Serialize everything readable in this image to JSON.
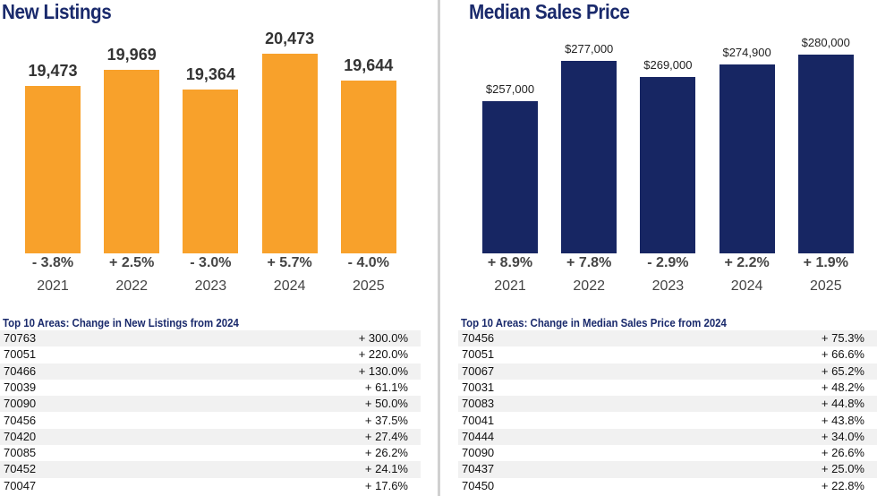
{
  "chart_data": [
    {
      "type": "bar",
      "title": "New Listings",
      "categories": [
        "2021",
        "2022",
        "2023",
        "2024",
        "2025"
      ],
      "values": [
        19473,
        19969,
        19364,
        20473,
        19644
      ],
      "value_labels": [
        "19,473",
        "19,969",
        "19,364",
        "20,473",
        "19,644"
      ],
      "change_labels": [
        "- 3.8%",
        "+ 2.5%",
        "- 3.0%",
        "+ 5.7%",
        "- 4.0%"
      ],
      "ylim": [
        14280,
        21030
      ],
      "color": "#f8a12b",
      "grid": false
    },
    {
      "type": "bar",
      "title": "Median Sales Price",
      "categories": [
        "2021",
        "2022",
        "2023",
        "2024",
        "2025"
      ],
      "values": [
        257000,
        277000,
        269000,
        274900,
        280000
      ],
      "value_labels": [
        "$257,000",
        "$277,000",
        "$269,000",
        "$274,900",
        "$280,000"
      ],
      "change_labels": [
        "+ 8.9%",
        "+ 7.8%",
        "- 2.9%",
        "+ 2.2%",
        "+ 1.9%"
      ],
      "ylim": [
        181800,
        289200
      ],
      "color": "#172663",
      "grid": false
    }
  ],
  "tables": [
    {
      "title": "Top 10 Areas: Change in New Listings from 2024",
      "rows": [
        [
          "70763",
          "+ 300.0%"
        ],
        [
          "70051",
          "+ 220.0%"
        ],
        [
          "70466",
          "+ 130.0%"
        ],
        [
          "70039",
          "+ 61.1%"
        ],
        [
          "70090",
          "+ 50.0%"
        ],
        [
          "70456",
          "+ 37.5%"
        ],
        [
          "70420",
          "+ 27.4%"
        ],
        [
          "70085",
          "+ 26.2%"
        ],
        [
          "70452",
          "+ 24.1%"
        ],
        [
          "70047",
          "+ 17.6%"
        ]
      ]
    },
    {
      "title": "Top 10 Areas: Change in Median Sales Price from 2024",
      "rows": [
        [
          "70456",
          "+ 75.3%"
        ],
        [
          "70051",
          "+ 66.6%"
        ],
        [
          "70067",
          "+ 65.2%"
        ],
        [
          "70031",
          "+ 48.2%"
        ],
        [
          "70083",
          "+ 44.8%"
        ],
        [
          "70041",
          "+ 43.8%"
        ],
        [
          "70444",
          "+ 34.0%"
        ],
        [
          "70090",
          "+ 26.6%"
        ],
        [
          "70437",
          "+ 25.0%"
        ],
        [
          "70450",
          "+ 22.8%"
        ]
      ]
    }
  ]
}
